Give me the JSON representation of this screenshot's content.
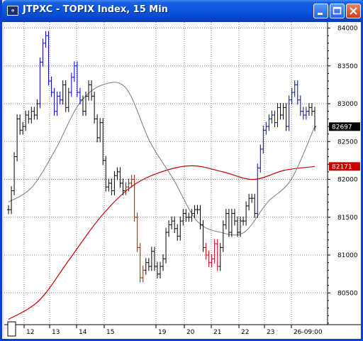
{
  "window": {
    "title": "JTPXC - TOPIX Index, 15 Min",
    "icon": "chart-app-icon",
    "buttons": [
      "minimize-icon",
      "maximize-icon",
      "close-icon"
    ]
  },
  "colors": {
    "titlebar": "#0855dd",
    "up_bar": "#000000",
    "high_bar": "#0000cc",
    "low_bar": "#cc0000",
    "ma_short": "#7a7a7a",
    "ma_long": "#cc0000",
    "last_price_box": "#000000",
    "ma_long_box": "#cc0000"
  },
  "chart_data": {
    "type": "ohlc",
    "ylim": [
      80080,
      84080
    ],
    "y_ticks": [
      "84000",
      "83500",
      "83000",
      "82500",
      "82000",
      "81500",
      "81000",
      "80500"
    ],
    "x_ticks": [
      "12",
      "13",
      "14",
      "15",
      "19",
      "20",
      "21",
      "22",
      "23",
      "26-09:00"
    ],
    "last_price_label": "82697",
    "ma_long_label": "82171",
    "grid": true,
    "price_series": [
      {
        "day": "12",
        "closes": [
          81600,
          81850,
          82300,
          82800,
          82650,
          82700,
          82850,
          82800,
          82900,
          82850,
          83000
        ]
      },
      {
        "day": "13",
        "closes": [
          83550,
          83800,
          83900,
          83300,
          83150,
          82900,
          83100,
          83050,
          83250,
          82950,
          83150
        ]
      },
      {
        "day": "14",
        "closes": [
          83350,
          83500,
          83150,
          83050,
          82900,
          83100,
          83250,
          83100,
          82800,
          82550,
          82750
        ]
      },
      {
        "day": "15",
        "closes": [
          82250,
          81900,
          81950,
          81850,
          82050,
          82100,
          81950,
          81850,
          81900,
          81950,
          82000
        ]
      },
      {
        "day": "19",
        "closes": [
          81500,
          81100,
          80700,
          80800,
          80900,
          80850,
          81050,
          80850,
          80750,
          80850,
          80950
        ]
      },
      {
        "day": "20",
        "closes": [
          81300,
          81400,
          81450,
          81350,
          81250,
          81450,
          81550,
          81500,
          81500,
          81550,
          81600
        ]
      },
      {
        "day": "21",
        "closes": [
          81600,
          81400,
          81100,
          81000,
          80900,
          80950,
          81150,
          80850,
          81100,
          81400,
          81550
        ]
      },
      {
        "day": "22",
        "closes": [
          81300,
          81550,
          81450,
          81300,
          81450,
          81450,
          81650,
          81750,
          81750,
          81550
        ]
      },
      {
        "day": "23",
        "closes": [
          82150,
          82400,
          82650,
          82700,
          82800,
          82850,
          82750,
          82950,
          82850,
          82950,
          82700
        ]
      },
      {
        "day": "26-09:00",
        "closes": [
          83050,
          83150,
          83250,
          83050,
          82900,
          82850,
          82900,
          82950,
          82900,
          82697
        ]
      }
    ],
    "ma_short": [
      81700,
      81900,
      82400,
      83000,
      83250,
      83200,
      82500,
      82000,
      81450,
      81300,
      81300,
      81700,
      82000,
      82700
    ],
    "ma_long": [
      80150,
      80400,
      80950,
      81500,
      81900,
      82100,
      82180,
      82100,
      82000,
      82120,
      82171
    ]
  }
}
